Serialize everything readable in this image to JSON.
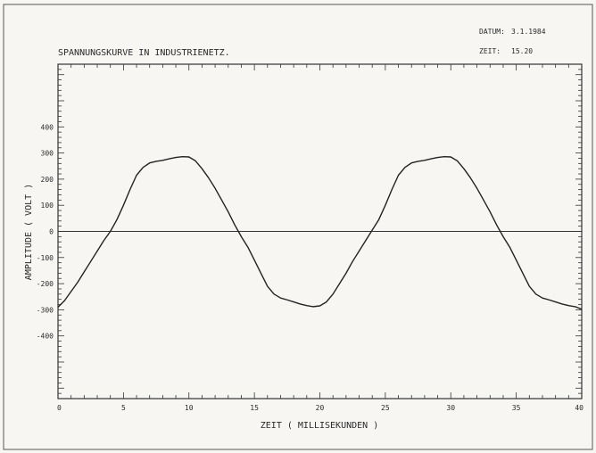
{
  "chart_data": {
    "type": "line",
    "title": "SPANNUNGSKURVE IN INDUSTRIENETZ.",
    "date_label": "DATUM:",
    "date_value": "3.1.1984",
    "time_label": "ZEIT:",
    "time_value": "15.20",
    "xlabel": "ZEIT ( MILLISEKUNDEN )",
    "ylabel": "AMPLITUDE ( VOLT )",
    "xlim": [
      0,
      40
    ],
    "ylim": [
      -640,
      640
    ],
    "grid": false,
    "x_ticks": [
      {
        "value": 0,
        "label": "0"
      },
      {
        "value": 5,
        "label": "5"
      },
      {
        "value": 10,
        "label": "10"
      },
      {
        "value": 15,
        "label": "15"
      },
      {
        "value": 20,
        "label": "20"
      },
      {
        "value": 25,
        "label": "25"
      },
      {
        "value": 30,
        "label": "30"
      },
      {
        "value": 35,
        "label": "35"
      },
      {
        "value": 40,
        "label": "40"
      }
    ],
    "y_ticks": [
      {
        "value": 400,
        "label": "400"
      },
      {
        "value": 300,
        "label": "300"
      },
      {
        "value": 200,
        "label": "200"
      },
      {
        "value": 100,
        "label": "100"
      },
      {
        "value": 0,
        "label": "0"
      },
      {
        "value": -100,
        "label": "-100"
      },
      {
        "value": -200,
        "label": "-200"
      },
      {
        "value": -300,
        "label": "-300"
      },
      {
        "value": -400,
        "label": "-400"
      }
    ],
    "series": [
      {
        "x": [
          0,
          0.5,
          1,
          1.5,
          2,
          2.5,
          3,
          3.5,
          4,
          4.5,
          5,
          5.5,
          6,
          6.5,
          7,
          7.5,
          8,
          8.5,
          9,
          9.5,
          10,
          10.5,
          11,
          11.5,
          12,
          12.5,
          13,
          13.5,
          14,
          14.5,
          15,
          15.5,
          16,
          16.5,
          17,
          17.5,
          18,
          18.5,
          19,
          19.5,
          20,
          20.5,
          21,
          21.5,
          22,
          22.5,
          23,
          23.5,
          24,
          24.5,
          25,
          25.5,
          26,
          26.5,
          27,
          27.5,
          28,
          28.5,
          29,
          29.5,
          30,
          30.5,
          31,
          31.5,
          32,
          32.5,
          33,
          33.5,
          34,
          34.5,
          35,
          35.5,
          36,
          36.5,
          37,
          37.5,
          38,
          38.5,
          39,
          39.5,
          40
        ],
        "y": [
          -290,
          -265,
          -230,
          -195,
          -155,
          -115,
          -75,
          -35,
          0,
          45,
          100,
          160,
          215,
          245,
          262,
          268,
          272,
          278,
          283,
          286,
          285,
          270,
          240,
          205,
          165,
          120,
          75,
          25,
          -20,
          -60,
          -110,
          -160,
          -210,
          -240,
          -255,
          -262,
          -270,
          -278,
          -284,
          -288,
          -285,
          -270,
          -240,
          -200,
          -160,
          -115,
          -75,
          -35,
          5,
          45,
          100,
          160,
          215,
          245,
          262,
          268,
          272,
          278,
          283,
          286,
          285,
          270,
          240,
          205,
          165,
          120,
          75,
          25,
          -20,
          -60,
          -110,
          -160,
          -210,
          -240,
          -255,
          -262,
          -270,
          -278,
          -284,
          -288,
          -298
        ]
      }
    ]
  }
}
